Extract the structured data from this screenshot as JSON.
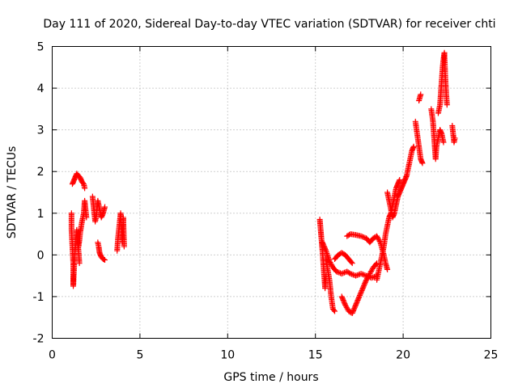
{
  "chart_data": {
    "type": "scatter",
    "title": "Day 111 of 2020, Sidereal Day-to-day VTEC variation (SDTVAR) for receiver chti",
    "xlabel": "GPS time / hours",
    "ylabel": "SDTVAR / TECUs",
    "xlim": [
      0,
      25
    ],
    "ylim": [
      -2,
      5
    ],
    "xticks": [
      0,
      5,
      10,
      15,
      20,
      25
    ],
    "yticks": [
      -2,
      -1,
      0,
      1,
      2,
      3,
      4,
      5
    ],
    "grid": true,
    "marker": "+",
    "color": "#ff0000",
    "series": [
      {
        "name": "SDTVAR",
        "segments": [
          [
            [
              1.1,
              1.0
            ],
            [
              1.1,
              0.6
            ],
            [
              1.15,
              0.2
            ],
            [
              1.2,
              -0.2
            ],
            [
              1.2,
              -0.5
            ],
            [
              1.2,
              -0.75
            ],
            [
              1.25,
              -0.3
            ],
            [
              1.3,
              0.1
            ],
            [
              1.35,
              0.4
            ],
            [
              1.4,
              0.6
            ],
            [
              1.45,
              0.3
            ],
            [
              1.5,
              0.1
            ],
            [
              1.55,
              -0.2
            ]
          ],
          [
            [
              1.15,
              1.7
            ],
            [
              1.2,
              1.75
            ],
            [
              1.3,
              1.85
            ],
            [
              1.4,
              1.95
            ],
            [
              1.5,
              1.9
            ],
            [
              1.6,
              1.85
            ],
            [
              1.7,
              1.75
            ],
            [
              1.8,
              1.7
            ],
            [
              1.85,
              1.6
            ]
          ],
          [
            [
              1.5,
              0.2
            ],
            [
              1.55,
              0.35
            ],
            [
              1.6,
              0.55
            ],
            [
              1.7,
              0.8
            ],
            [
              1.8,
              1.0
            ],
            [
              1.85,
              1.3
            ],
            [
              1.9,
              1.1
            ],
            [
              1.95,
              0.9
            ]
          ],
          [
            [
              2.3,
              1.4
            ],
            [
              2.35,
              1.2
            ],
            [
              2.4,
              1.0
            ],
            [
              2.45,
              0.8
            ],
            [
              2.5,
              0.9
            ],
            [
              2.55,
              1.1
            ],
            [
              2.6,
              1.3
            ],
            [
              2.7,
              1.1
            ],
            [
              2.8,
              0.9
            ],
            [
              2.9,
              1.0
            ],
            [
              3.0,
              1.15
            ]
          ],
          [
            [
              2.6,
              0.3
            ],
            [
              2.65,
              0.2
            ],
            [
              2.7,
              0.05
            ],
            [
              2.8,
              -0.05
            ],
            [
              2.9,
              -0.1
            ],
            [
              3.0,
              -0.12
            ]
          ],
          [
            [
              3.7,
              0.1
            ],
            [
              3.75,
              0.4
            ],
            [
              3.8,
              0.6
            ],
            [
              3.85,
              0.8
            ],
            [
              3.9,
              1.0
            ],
            [
              3.95,
              0.6
            ],
            [
              4.0,
              0.3
            ],
            [
              4.05,
              0.9
            ],
            [
              4.1,
              0.2
            ]
          ],
          [
            [
              15.25,
              0.85
            ],
            [
              15.3,
              0.6
            ],
            [
              15.35,
              0.35
            ],
            [
              15.4,
              0.1
            ],
            [
              15.45,
              -0.2
            ],
            [
              15.5,
              -0.5
            ],
            [
              15.55,
              -0.8
            ],
            [
              15.6,
              -0.5
            ]
          ],
          [
            [
              15.4,
              0.3
            ],
            [
              15.6,
              0.1
            ],
            [
              15.8,
              -0.15
            ],
            [
              16.0,
              -0.3
            ],
            [
              16.2,
              -0.4
            ],
            [
              16.5,
              -0.45
            ],
            [
              16.8,
              -0.4
            ],
            [
              17.0,
              -0.45
            ],
            [
              17.3,
              -0.5
            ],
            [
              17.6,
              -0.45
            ],
            [
              17.9,
              -0.5
            ],
            [
              18.2,
              -0.55
            ],
            [
              18.5,
              -0.5
            ]
          ],
          [
            [
              15.6,
              -0.1
            ],
            [
              15.8,
              -0.6
            ],
            [
              15.9,
              -1.0
            ],
            [
              16.0,
              -1.3
            ],
            [
              16.1,
              -1.35
            ]
          ],
          [
            [
              16.1,
              -0.1
            ],
            [
              16.3,
              0.0
            ],
            [
              16.5,
              0.05
            ],
            [
              16.7,
              0.0
            ],
            [
              16.9,
              -0.1
            ],
            [
              17.1,
              -0.2
            ]
          ],
          [
            [
              16.5,
              -1.0
            ],
            [
              16.7,
              -1.2
            ],
            [
              16.9,
              -1.35
            ],
            [
              17.1,
              -1.4
            ],
            [
              17.3,
              -1.2
            ],
            [
              17.5,
              -1.0
            ],
            [
              17.7,
              -0.8
            ],
            [
              17.9,
              -0.6
            ],
            [
              18.1,
              -0.45
            ],
            [
              18.3,
              -0.3
            ],
            [
              18.5,
              -0.2
            ]
          ],
          [
            [
              16.8,
              0.45
            ],
            [
              17.0,
              0.5
            ],
            [
              17.3,
              0.48
            ],
            [
              17.6,
              0.45
            ],
            [
              17.9,
              0.4
            ],
            [
              18.1,
              0.3
            ],
            [
              18.3,
              0.4
            ],
            [
              18.5,
              0.45
            ],
            [
              18.7,
              0.3
            ],
            [
              18.9,
              0.0
            ],
            [
              19.0,
              -0.2
            ],
            [
              19.1,
              -0.35
            ]
          ],
          [
            [
              18.5,
              -0.6
            ],
            [
              18.6,
              -0.4
            ],
            [
              18.7,
              -0.2
            ],
            [
              18.8,
              0.0
            ],
            [
              18.9,
              0.2
            ],
            [
              19.0,
              0.5
            ],
            [
              19.1,
              0.7
            ],
            [
              19.2,
              0.9
            ],
            [
              19.3,
              1.0
            ],
            [
              19.4,
              1.2
            ],
            [
              19.5,
              1.4
            ],
            [
              19.6,
              1.6
            ],
            [
              19.7,
              1.7
            ],
            [
              19.8,
              1.8
            ]
          ],
          [
            [
              19.1,
              1.5
            ],
            [
              19.2,
              1.3
            ],
            [
              19.3,
              1.1
            ],
            [
              19.4,
              0.9
            ],
            [
              19.5,
              1.0
            ],
            [
              19.6,
              1.2
            ],
            [
              19.7,
              1.4
            ],
            [
              19.8,
              1.5
            ],
            [
              19.9,
              1.6
            ],
            [
              20.0,
              1.7
            ],
            [
              20.1,
              1.8
            ],
            [
              20.2,
              1.9
            ],
            [
              20.3,
              2.1
            ],
            [
              20.4,
              2.3
            ],
            [
              20.5,
              2.5
            ],
            [
              20.6,
              2.6
            ]
          ],
          [
            [
              20.7,
              3.2
            ],
            [
              20.8,
              2.9
            ],
            [
              20.9,
              2.6
            ],
            [
              21.0,
              2.3
            ],
            [
              21.1,
              2.2
            ]
          ],
          [
            [
              20.9,
              3.7
            ],
            [
              21.0,
              3.85
            ]
          ],
          [
            [
              21.6,
              3.5
            ],
            [
              21.7,
              3.2
            ],
            [
              21.75,
              2.9
            ],
            [
              21.8,
              2.6
            ],
            [
              21.85,
              2.3
            ],
            [
              21.9,
              2.6
            ],
            [
              22.0,
              2.8
            ],
            [
              22.1,
              3.0
            ],
            [
              22.2,
              2.9
            ],
            [
              22.3,
              2.7
            ]
          ],
          [
            [
              22.0,
              3.4
            ],
            [
              22.1,
              3.6
            ],
            [
              22.15,
              3.9
            ],
            [
              22.2,
              4.2
            ],
            [
              22.25,
              4.5
            ],
            [
              22.3,
              4.7
            ],
            [
              22.35,
              4.85
            ],
            [
              22.4,
              4.3
            ],
            [
              22.45,
              3.9
            ],
            [
              22.5,
              3.6
            ]
          ],
          [
            [
              22.8,
              3.1
            ],
            [
              22.85,
              2.9
            ],
            [
              22.9,
              2.7
            ],
            [
              22.95,
              2.8
            ]
          ]
        ]
      }
    ]
  }
}
